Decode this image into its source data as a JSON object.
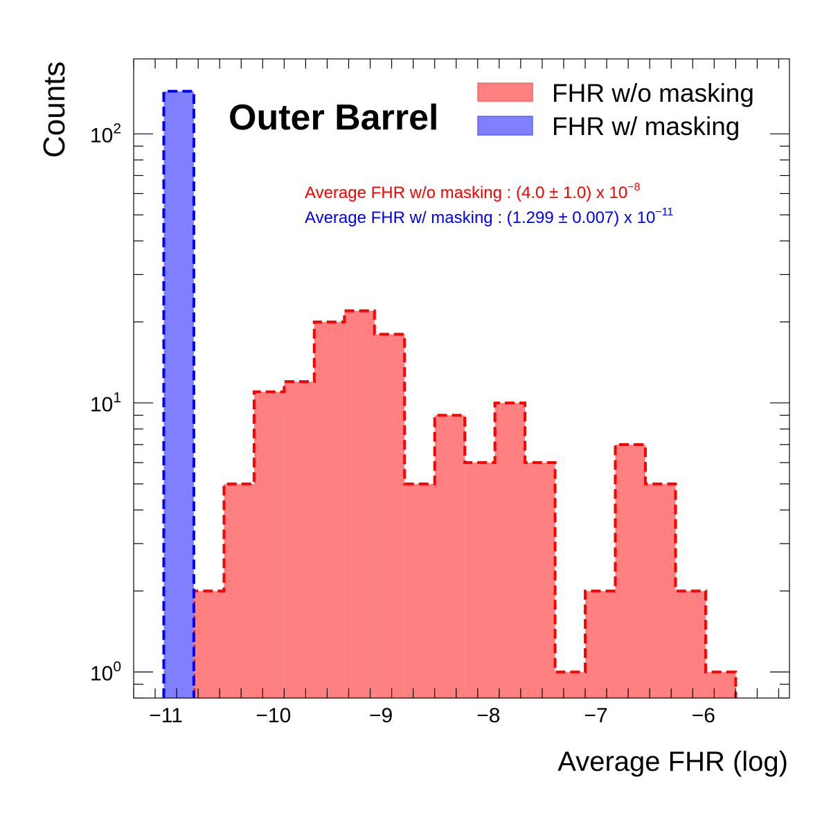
{
  "chart_data": {
    "type": "histogram",
    "title": "Outer Barrel",
    "xlabel": "Average FHR (log)",
    "ylabel": "Counts",
    "xlim": [
      -11.3,
      -5.2
    ],
    "ylim": [
      0.8,
      190
    ],
    "yscale": "log",
    "grid": false,
    "legend_position": "top-right",
    "x_ticks": [
      -11,
      -10,
      -9,
      -8,
      -7,
      -6
    ],
    "x_tick_labels": [
      "−11",
      "−10",
      "−9",
      "−8",
      "−7",
      "−6"
    ],
    "y_ticks": [
      1,
      10,
      100
    ],
    "y_tick_labels": [
      {
        "base": "10",
        "exp": "0"
      },
      {
        "base": "10",
        "exp": "1"
      },
      {
        "base": "10",
        "exp": "2"
      }
    ],
    "series": [
      {
        "name": "FHR w/o masking",
        "color": "#ff0000",
        "fill": "#ff8080",
        "bins": [
          {
            "x0": -10.74,
            "x1": -10.46,
            "count": 2
          },
          {
            "x0": -10.46,
            "x1": -10.18,
            "count": 5
          },
          {
            "x0": -10.18,
            "x1": -9.9,
            "count": 11
          },
          {
            "x0": -9.9,
            "x1": -9.62,
            "count": 12
          },
          {
            "x0": -9.62,
            "x1": -9.34,
            "count": 20
          },
          {
            "x0": -9.34,
            "x1": -9.06,
            "count": 22
          },
          {
            "x0": -9.06,
            "x1": -8.78,
            "count": 18
          },
          {
            "x0": -8.78,
            "x1": -8.5,
            "count": 5
          },
          {
            "x0": -8.5,
            "x1": -8.22,
            "count": 9
          },
          {
            "x0": -8.22,
            "x1": -7.94,
            "count": 6
          },
          {
            "x0": -7.94,
            "x1": -7.66,
            "count": 10
          },
          {
            "x0": -7.66,
            "x1": -7.38,
            "count": 6
          },
          {
            "x0": -7.38,
            "x1": -7.1,
            "count": 1
          },
          {
            "x0": -7.1,
            "x1": -6.82,
            "count": 2
          },
          {
            "x0": -6.82,
            "x1": -6.54,
            "count": 7
          },
          {
            "x0": -6.54,
            "x1": -6.26,
            "count": 5
          },
          {
            "x0": -6.26,
            "x1": -5.98,
            "count": 2
          },
          {
            "x0": -5.98,
            "x1": -5.7,
            "count": 1
          }
        ]
      },
      {
        "name": "FHR w/ masking",
        "color": "#0000ff",
        "fill": "#8080ff",
        "bins": [
          {
            "x0": -11.02,
            "x1": -10.74,
            "count": 144
          }
        ]
      }
    ],
    "annotations": [
      {
        "text": "Average FHR w/o masking : (4.0 ± 1.0) x 10",
        "exp": "−8",
        "color": "#ff0000"
      },
      {
        "text": "Average FHR w/ masking : (1.299 ± 0.007) x 10",
        "exp": "−11",
        "color": "#0000ff"
      }
    ]
  }
}
